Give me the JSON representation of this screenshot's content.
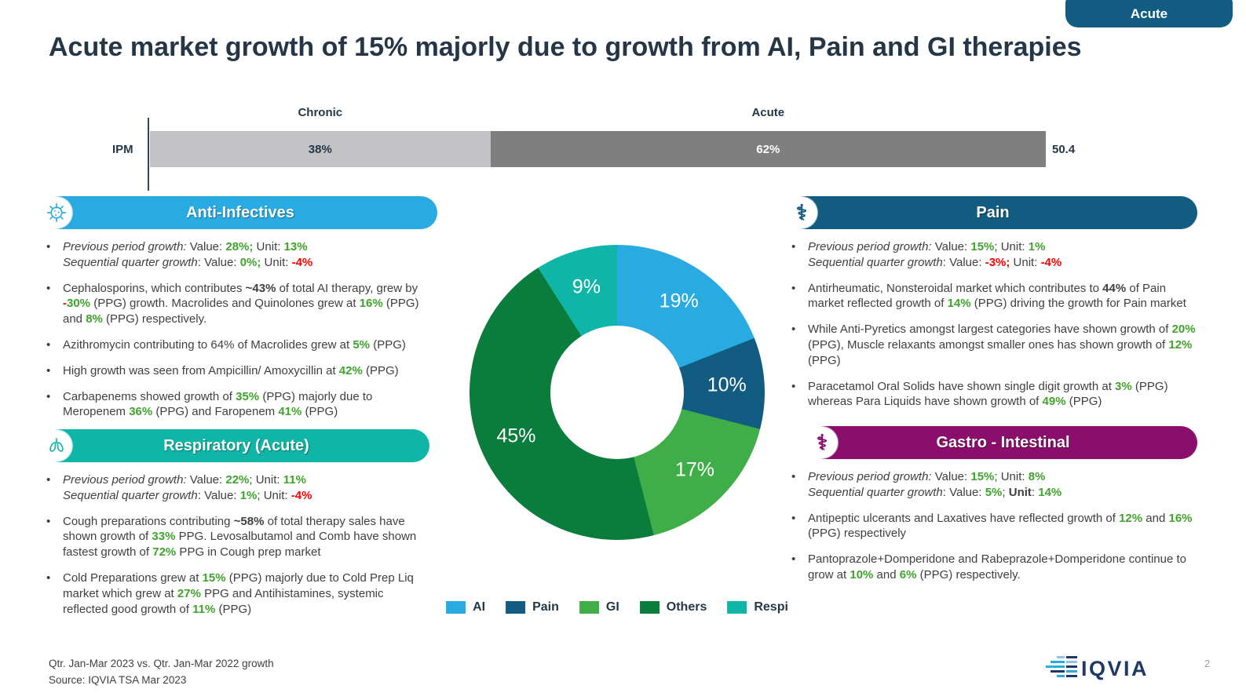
{
  "tab": {
    "label": "Acute"
  },
  "title": "Acute market growth of 15% majorly due to growth from AI, Pain and GI therapies",
  "market_bar": {
    "row_label": "IPM",
    "total_label": "50.4",
    "segments": [
      {
        "group": "Chronic",
        "label": "38%",
        "value": 38,
        "color": "#C3C3C5",
        "label_color": "#253746"
      },
      {
        "group": "Acute",
        "label": "62%",
        "value": 62,
        "color": "#7F7F7F",
        "label_color": "#FFFFFF"
      }
    ]
  },
  "sections": [
    {
      "id": "anti-infectives",
      "title": "Anti-Infectives",
      "color": "#29ABE2",
      "icon": "virus-icon",
      "bullets": [
        [
          {
            "t": "Previous period growth:",
            "s": "i"
          },
          {
            "t": " Value: "
          },
          {
            "t": "28%;",
            "s": "g"
          },
          {
            "t": " Unit: "
          },
          {
            "t": "13%",
            "s": "g"
          },
          {
            "br": true
          },
          {
            "t": "Sequential quarter growth",
            "s": "i"
          },
          {
            "t": ": Value: "
          },
          {
            "t": "0%;",
            "s": "g"
          },
          {
            "t": " Unit: "
          },
          {
            "t": "-4%",
            "s": "r"
          }
        ],
        [
          {
            "t": "Cephalosporins, which contributes "
          },
          {
            "t": "~43%",
            "s": "b"
          },
          {
            "t": " of total AI therapy, grew by "
          },
          {
            "t": "-",
            "s": "r"
          },
          {
            "t": "30%",
            "s": "g"
          },
          {
            "t": " (PPG) growth. Macrolides and Quinolones grew at "
          },
          {
            "t": "16%",
            "s": "g"
          },
          {
            "t": " (PPG) and "
          },
          {
            "t": "8%",
            "s": "g"
          },
          {
            "t": " (PPG) respectively."
          }
        ],
        [
          {
            "t": "Azithromycin contributing to 64% of Macrolides grew at "
          },
          {
            "t": "5%",
            "s": "g"
          },
          {
            "t": " (PPG)"
          }
        ],
        [
          {
            "t": "High growth was seen from Ampicillin/ Amoxycillin at "
          },
          {
            "t": "42%",
            "s": "g"
          },
          {
            "t": " (PPG)"
          }
        ],
        [
          {
            "t": "Carbapenems showed growth of "
          },
          {
            "t": "35%",
            "s": "g"
          },
          {
            "t": " (PPG) majorly due to Meropenem "
          },
          {
            "t": "36%",
            "s": "g"
          },
          {
            "t": " (PPG) and Faropenem "
          },
          {
            "t": "41%",
            "s": "g"
          },
          {
            "t": " (PPG)"
          }
        ]
      ]
    },
    {
      "id": "respiratory-acute",
      "title": "Respiratory (Acute)",
      "color": "#0FB5A7",
      "icon": "lungs-icon",
      "bullets": [
        [
          {
            "t": "Previous period growth:",
            "s": "i"
          },
          {
            "t": " Value: "
          },
          {
            "t": "22%",
            "s": "g"
          },
          {
            "t": "; Unit: "
          },
          {
            "t": "11%",
            "s": "g"
          },
          {
            "br": true
          },
          {
            "t": "Sequential quarter growth",
            "s": "i"
          },
          {
            "t": ": Value: "
          },
          {
            "t": "1%",
            "s": "g"
          },
          {
            "t": "; Unit: "
          },
          {
            "t": "-4%",
            "s": "r"
          }
        ],
        [
          {
            "t": "Cough preparations contributing "
          },
          {
            "t": "~58%",
            "s": "b"
          },
          {
            "t": " of total therapy sales have shown growth of "
          },
          {
            "t": "33%",
            "s": "g"
          },
          {
            "t": " PPG. Levosalbutamol and Comb have shown fastest growth of "
          },
          {
            "t": "72%",
            "s": "g"
          },
          {
            "t": " PPG in Cough prep market"
          }
        ],
        [
          {
            "t": "Cold Preparations grew at "
          },
          {
            "t": "15%",
            "s": "g"
          },
          {
            "t": " (PPG) majorly due to Cold Prep Liq market which grew at "
          },
          {
            "t": "27%",
            "s": "g"
          },
          {
            "t": " PPG and Antihistamines, systemic reflected good growth of "
          },
          {
            "t": "11%",
            "s": "g"
          },
          {
            "t": " (PPG)"
          }
        ]
      ]
    },
    {
      "id": "pain",
      "title": "Pain",
      "color": "#125C82",
      "icon": "caduceus-icon",
      "bullets": [
        [
          {
            "t": "Previous period growth:",
            "s": "i"
          },
          {
            "t": " Value: "
          },
          {
            "t": "15%",
            "s": "g"
          },
          {
            "t": "; Unit: "
          },
          {
            "t": "1%",
            "s": "g"
          },
          {
            "br": true
          },
          {
            "t": "Sequential quarter growth",
            "s": "i"
          },
          {
            "t": ": Value: "
          },
          {
            "t": "-3%;",
            "s": "r"
          },
          {
            "t": " Unit: "
          },
          {
            "t": "-4%",
            "s": "r"
          }
        ],
        [
          {
            "t": "Antirheumatic, Nonsteroidal market which contributes to "
          },
          {
            "t": "44%",
            "s": "b"
          },
          {
            "t": " of Pain market reflected growth of "
          },
          {
            "t": "14%",
            "s": "g"
          },
          {
            "t": " (PPG) driving the growth for Pain market"
          }
        ],
        [
          {
            "t": "While Anti-Pyretics amongst largest categories have shown growth of "
          },
          {
            "t": "20%",
            "s": "g"
          },
          {
            "t": " (PPG), Muscle relaxants amongst smaller ones has shown growth of "
          },
          {
            "t": "12%",
            "s": "g"
          },
          {
            "t": " (PPG)"
          }
        ],
        [
          {
            "t": "Paracetamol Oral Solids have shown single digit growth at "
          },
          {
            "t": "3%",
            "s": "g"
          },
          {
            "t": " (PPG) whereas Para Liquids have shown growth of "
          },
          {
            "t": "49%",
            "s": "g"
          },
          {
            "t": " (PPG)"
          }
        ]
      ]
    },
    {
      "id": "gastro-intestinal",
      "title": "Gastro - Intestinal",
      "color": "#8B0E6C",
      "icon": "caduceus-icon",
      "bullets": [
        [
          {
            "t": "Previous period growth:",
            "s": "i"
          },
          {
            "t": " Value: "
          },
          {
            "t": "15%",
            "s": "g"
          },
          {
            "t": "; Unit: "
          },
          {
            "t": "8%",
            "s": "g"
          },
          {
            "br": true
          },
          {
            "t": "Sequential quarter growth",
            "s": "i"
          },
          {
            "t": ": Value: "
          },
          {
            "t": "5%",
            "s": "g"
          },
          {
            "t": "; "
          },
          {
            "t": "Unit",
            "s": "b"
          },
          {
            "t": ": "
          },
          {
            "t": "14%",
            "s": "g"
          }
        ],
        [
          {
            "t": "Antipeptic ulcerants and Laxatives have reflected growth of "
          },
          {
            "t": "12%",
            "s": "g"
          },
          {
            "t": " and "
          },
          {
            "t": "16%",
            "s": "g"
          },
          {
            "t": " (PPG) respectively"
          }
        ],
        [
          {
            "t": "Pantoprazole+Domperidone and Rabeprazole+Domperidone continue to grow at "
          },
          {
            "t": "10%",
            "s": "g"
          },
          {
            "t": " and "
          },
          {
            "t": "6%",
            "s": "g"
          },
          {
            "t": " (PPG) respectively."
          }
        ]
      ]
    }
  ],
  "chart_data": {
    "type": "pie",
    "subtype": "donut",
    "labels": [
      "AI",
      "Pain",
      "GI",
      "Others",
      "Respi"
    ],
    "values": [
      19,
      10,
      17,
      45,
      9
    ],
    "unit": "%",
    "slice_labels": [
      "19%",
      "10%",
      "17%",
      "45%",
      "9%"
    ],
    "colors": [
      "#29ABE2",
      "#125C82",
      "#3FAE49",
      "#0A7C3B",
      "#0FB5A7"
    ],
    "start_angle_deg": 0,
    "direction": "clockwise",
    "inner_radius_ratio": 0.45,
    "legend_position": "bottom"
  },
  "footer": {
    "line1": "Qtr. Jan-Mar 2023 vs. Qtr. Jan-Mar 2022 growth",
    "line2": "Source: IQVIA TSA Mar 2023",
    "logo_text": "IQVIA",
    "page_number": "2"
  },
  "palette": {
    "navy": "#253746",
    "green_text": "#3FA32C",
    "red_text": "#FF0000",
    "light_gray_bar": "#C3C3C5",
    "dark_gray_bar": "#7F7F7F"
  }
}
